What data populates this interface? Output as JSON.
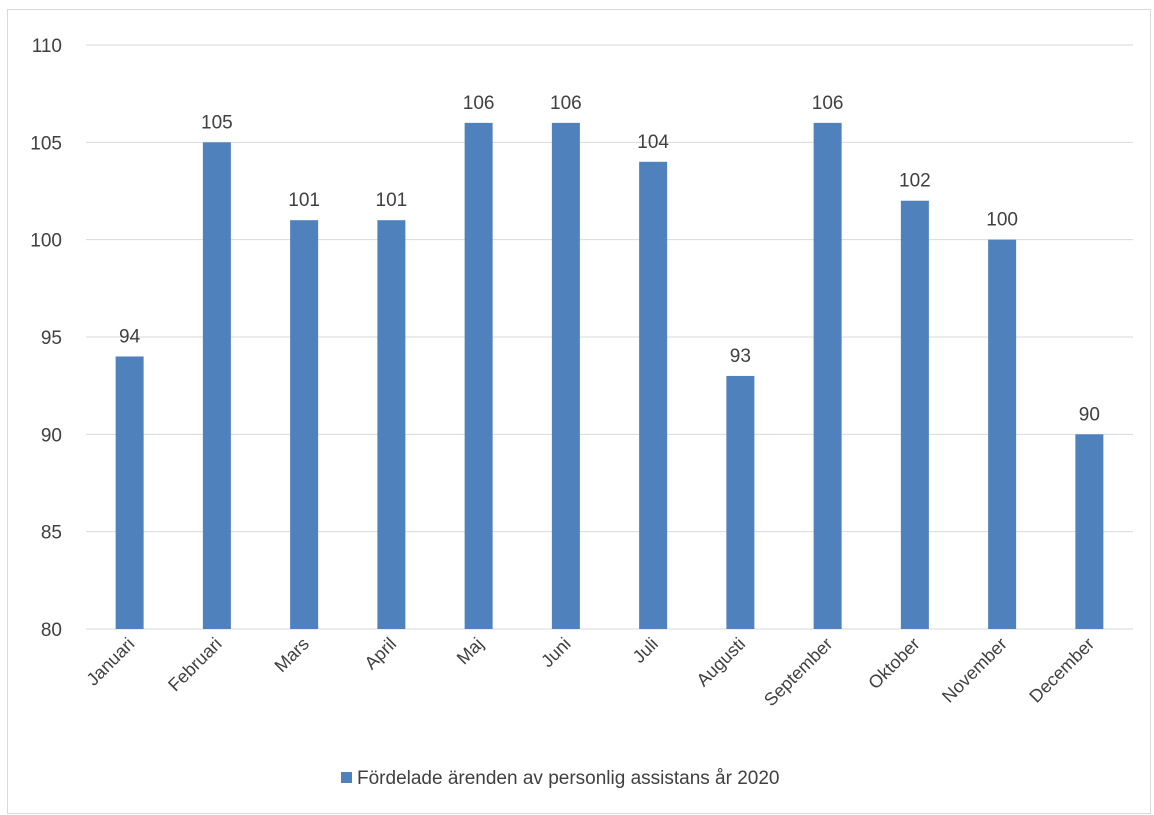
{
  "chart_data": {
    "type": "bar",
    "categories": [
      "Januari",
      "Februari",
      "Mars",
      "April",
      "Maj",
      "Juni",
      "Juli",
      "Augusti",
      "September",
      "Oktober",
      "November",
      "December"
    ],
    "series": [
      {
        "name": "Fördelade ärenden av personlig assistans år 2020",
        "values": [
          94,
          105,
          101,
          101,
          106,
          106,
          104,
          93,
          106,
          102,
          100,
          90
        ]
      }
    ],
    "ylim": [
      80,
      110
    ],
    "yticks": [
      80,
      85,
      90,
      95,
      100,
      105,
      110
    ],
    "grid": true,
    "legend_position": "bottom",
    "colors": {
      "bar": "#4f81bd",
      "grid": "#d9d9d9",
      "axis": "#d9d9d9",
      "text": "#404040"
    }
  }
}
